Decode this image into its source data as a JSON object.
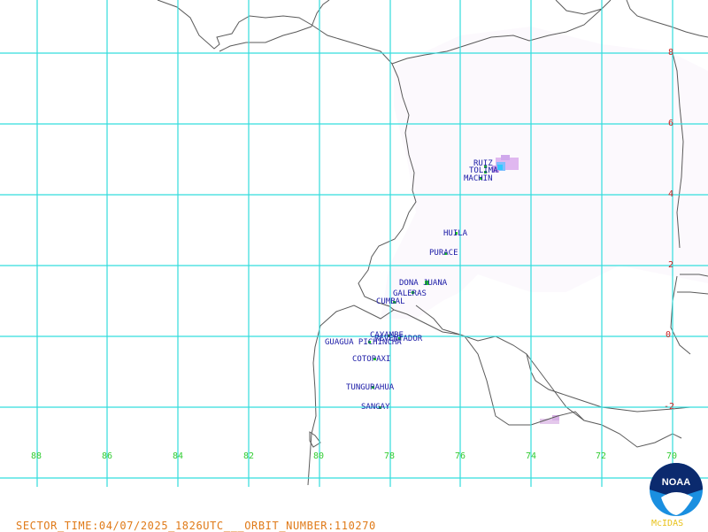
{
  "map": {
    "lon_labels": [
      "88",
      "86",
      "84",
      "82",
      "80",
      "78",
      "76",
      "74",
      "72",
      "70"
    ],
    "lat_labels": [
      "8",
      "6",
      "4",
      "2",
      "0",
      "-2"
    ],
    "volcanoes": [
      {
        "name": "RUIZ"
      },
      {
        "name": "TOLIMA"
      },
      {
        "name": "MACHIN"
      },
      {
        "name": "HUILA"
      },
      {
        "name": "PURACE"
      },
      {
        "name": "DONA JUANA"
      },
      {
        "name": "GALERAS"
      },
      {
        "name": "CUMBAL"
      },
      {
        "name": "CAYAMBE"
      },
      {
        "name": "REVENTADOR"
      },
      {
        "name": "GUAGUA PICHINCHA"
      },
      {
        "name": "COTOPAXI"
      },
      {
        "name": "TUNGURAHUA"
      },
      {
        "name": "SANGAY"
      }
    ],
    "colors": {
      "grid": "#33dddd",
      "coast": "#555555",
      "lon_label": "#33cc33",
      "lat_label": "#cc2222",
      "volcano_label": "#1a1aa6"
    }
  },
  "footer": {
    "text": "SECTOR_TIME:04/07/2025_1826UTC___ORBIT_NUMBER:110270"
  },
  "logo": {
    "badge": "NOAA",
    "text": "McIDAS"
  }
}
